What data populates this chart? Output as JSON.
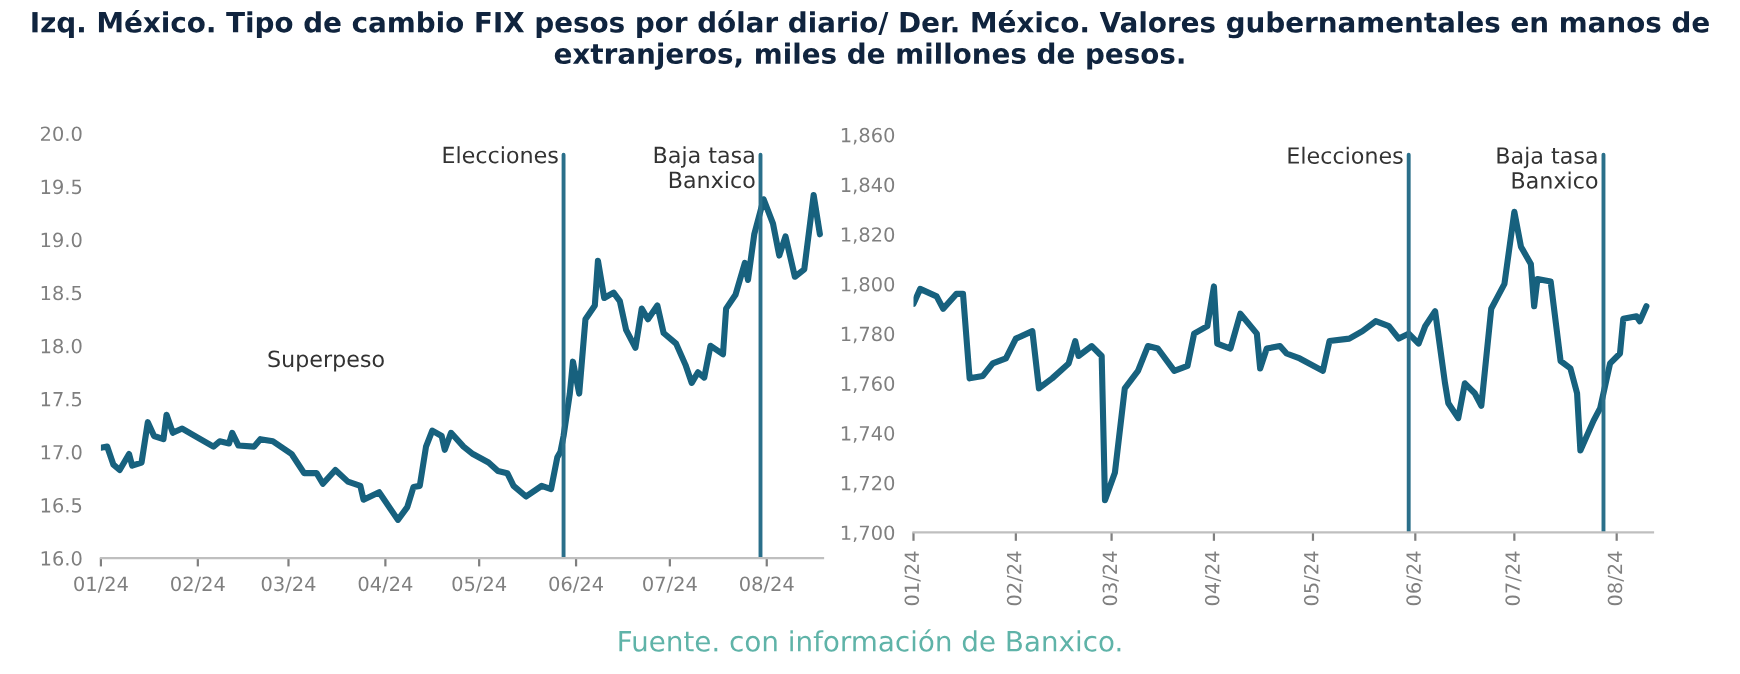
{
  "chart_data": [
    {
      "type": "line",
      "title": "Izq. México. Tipo de cambio FIX pesos por dólar diario/ Der. México. Valores gubernamentales en manos de extranjeros, miles de millones de pesos.",
      "x": [
        "2024-01-01",
        "2024-01-03",
        "2024-01-05",
        "2024-01-07",
        "2024-01-10",
        "2024-01-11",
        "2024-01-14",
        "2024-01-16",
        "2024-01-18",
        "2024-01-21",
        "2024-01-22",
        "2024-01-24",
        "2024-01-27",
        "2024-01-31",
        "2024-02-06",
        "2024-02-08",
        "2024-02-11",
        "2024-02-12",
        "2024-02-14",
        "2024-02-19",
        "2024-02-21",
        "2024-02-25",
        "2024-03-02",
        "2024-03-06",
        "2024-03-10",
        "2024-03-12",
        "2024-03-16",
        "2024-03-20",
        "2024-03-24",
        "2024-03-25",
        "2024-03-30",
        "2024-04-05",
        "2024-04-08",
        "2024-04-10",
        "2024-04-12",
        "2024-04-14",
        "2024-04-16",
        "2024-04-19",
        "2024-04-20",
        "2024-04-22",
        "2024-04-26",
        "2024-04-29",
        "2024-05-04",
        "2024-05-07",
        "2024-05-10",
        "2024-05-12",
        "2024-05-16",
        "2024-05-21",
        "2024-05-24",
        "2024-05-26",
        "2024-05-27",
        "2024-05-28",
        "2024-05-30",
        "2024-05-31",
        "2024-06-02",
        "2024-06-04",
        "2024-06-07",
        "2024-06-08",
        "2024-06-10",
        "2024-06-13",
        "2024-06-15",
        "2024-06-17",
        "2024-06-20",
        "2024-06-22",
        "2024-06-24",
        "2024-06-27",
        "2024-06-29",
        "2024-07-03",
        "2024-07-06",
        "2024-07-08",
        "2024-07-10",
        "2024-07-12",
        "2024-07-14",
        "2024-07-18",
        "2024-07-19",
        "2024-07-22",
        "2024-07-25",
        "2024-07-26",
        "2024-07-28",
        "2024-07-31",
        "2024-08-03",
        "2024-08-05",
        "2024-08-07",
        "2024-08-10",
        "2024-08-13",
        "2024-08-16",
        "2024-08-18"
      ],
      "series": [
        {
          "color": "#17617e",
          "values": [
            17.04,
            17.05,
            16.88,
            16.83,
            16.98,
            16.87,
            16.9,
            17.28,
            17.15,
            17.12,
            17.35,
            17.18,
            17.22,
            17.15,
            17.05,
            17.1,
            17.08,
            17.18,
            17.06,
            17.05,
            17.12,
            17.1,
            16.98,
            16.8,
            16.8,
            16.7,
            16.83,
            16.72,
            16.68,
            16.55,
            16.62,
            16.36,
            16.48,
            16.67,
            16.68,
            17.05,
            17.2,
            17.15,
            17.02,
            17.18,
            17.05,
            16.98,
            16.9,
            16.82,
            16.8,
            16.68,
            16.58,
            16.68,
            16.65,
            16.95,
            17.0,
            17.15,
            17.55,
            17.85,
            17.55,
            18.25,
            18.38,
            18.8,
            18.45,
            18.5,
            18.42,
            18.15,
            17.98,
            18.35,
            18.25,
            18.38,
            18.12,
            18.02,
            17.82,
            17.65,
            17.75,
            17.7,
            18.0,
            17.92,
            18.35,
            18.48,
            18.78,
            18.62,
            19.05,
            19.38,
            19.15,
            18.85,
            19.03,
            18.65,
            18.72,
            19.42,
            19.05
          ]
        }
      ],
      "xlim": [
        "2024-01-01",
        "2024-08-19"
      ],
      "xticks": [
        {
          "value": "2024-01-01",
          "label": "01/24"
        },
        {
          "value": "2024-02-01",
          "label": "02/24"
        },
        {
          "value": "2024-03-01",
          "label": "03/24"
        },
        {
          "value": "2024-04-01",
          "label": "04/24"
        },
        {
          "value": "2024-05-01",
          "label": "05/24"
        },
        {
          "value": "2024-06-01",
          "label": "06/24"
        },
        {
          "value": "2024-07-01",
          "label": "07/24"
        },
        {
          "value": "2024-08-01",
          "label": "08/24"
        }
      ],
      "ylim": [
        16.0,
        20.0
      ],
      "yticks": [
        {
          "value": 16.0,
          "label": "16.0"
        },
        {
          "value": 16.5,
          "label": "16.5"
        },
        {
          "value": 17.0,
          "label": "17.0"
        },
        {
          "value": 17.5,
          "label": "17.5"
        },
        {
          "value": 18.0,
          "label": "18.0"
        },
        {
          "value": 18.5,
          "label": "18.5"
        },
        {
          "value": 19.0,
          "label": "19.0"
        },
        {
          "value": 19.5,
          "label": "19.5"
        },
        {
          "value": 20.0,
          "label": "20.0"
        }
      ],
      "ref_lines": [
        {
          "axis": "x",
          "value": "2024-05-28",
          "label": "Elecciones",
          "color": "#2a6f8a"
        },
        {
          "axis": "x",
          "value": "2024-07-30",
          "label": "Baja tasa\nBanxico",
          "color": "#2a6f8a"
        }
      ],
      "annotations": [
        "Superpeso"
      ],
      "grid": false,
      "marker": "none",
      "line_style": "solid"
    },
    {
      "type": "line",
      "x": [
        "2024-01-01",
        "2024-01-03",
        "2024-01-08",
        "2024-01-10",
        "2024-01-14",
        "2024-01-16",
        "2024-01-18",
        "2024-01-22",
        "2024-01-25",
        "2024-01-29",
        "2024-02-01",
        "2024-02-06",
        "2024-02-08",
        "2024-02-12",
        "2024-02-17",
        "2024-02-19",
        "2024-02-20",
        "2024-02-24",
        "2024-02-27",
        "2024-02-28",
        "2024-03-02",
        "2024-03-05",
        "2024-03-09",
        "2024-03-12",
        "2024-03-15",
        "2024-03-20",
        "2024-03-24",
        "2024-03-26",
        "2024-03-30",
        "2024-04-01",
        "2024-04-02",
        "2024-04-06",
        "2024-04-09",
        "2024-04-14",
        "2024-04-15",
        "2024-04-17",
        "2024-04-21",
        "2024-04-23",
        "2024-04-27",
        "2024-05-04",
        "2024-05-06",
        "2024-05-12",
        "2024-05-16",
        "2024-05-20",
        "2024-05-24",
        "2024-05-27",
        "2024-05-30",
        "2024-06-02",
        "2024-06-04",
        "2024-06-07",
        "2024-06-10",
        "2024-06-11",
        "2024-06-14",
        "2024-06-16",
        "2024-06-19",
        "2024-06-21",
        "2024-06-24",
        "2024-06-28",
        "2024-07-01",
        "2024-07-03",
        "2024-07-06",
        "2024-07-07",
        "2024-07-08",
        "2024-07-12",
        "2024-07-15",
        "2024-07-18",
        "2024-07-20",
        "2024-07-21",
        "2024-07-25",
        "2024-07-27",
        "2024-07-30",
        "2024-08-02",
        "2024-08-03",
        "2024-08-07",
        "2024-08-08",
        "2024-08-10"
      ],
      "series": [
        {
          "color": "#17617e",
          "values": [
            1792,
            1798,
            1795,
            1790,
            1796,
            1796,
            1762,
            1763,
            1768,
            1770,
            1778,
            1781,
            1758,
            1762,
            1768,
            1777,
            1771,
            1775,
            1771,
            1713,
            1724,
            1758,
            1765,
            1775,
            1774,
            1765,
            1767,
            1780,
            1783,
            1799,
            1776,
            1774,
            1788,
            1780,
            1766,
            1774,
            1775,
            1772,
            1770,
            1765,
            1777,
            1778,
            1781,
            1785,
            1783,
            1778,
            1780,
            1776,
            1783,
            1789,
            1760,
            1752,
            1746,
            1760,
            1756,
            1751,
            1790,
            1800,
            1829,
            1815,
            1808,
            1791,
            1802,
            1801,
            1769,
            1766,
            1756,
            1733,
            1745,
            1750,
            1768,
            1772,
            1786,
            1787,
            1785,
            1791
          ]
        }
      ],
      "xlim": [
        "2024-01-01",
        "2024-08-12"
      ],
      "xticks": [
        {
          "value": "2024-01-01",
          "label": "01/24"
        },
        {
          "value": "2024-02-01",
          "label": "02/24"
        },
        {
          "value": "2024-03-01",
          "label": "03/24"
        },
        {
          "value": "2024-04-01",
          "label": "04/24"
        },
        {
          "value": "2024-05-01",
          "label": "05/24"
        },
        {
          "value": "2024-06-01",
          "label": "06/24"
        },
        {
          "value": "2024-07-01",
          "label": "07/24"
        },
        {
          "value": "2024-08-01",
          "label": "08/24"
        }
      ],
      "ylim": [
        1700,
        1860
      ],
      "yticks": [
        {
          "value": 1700,
          "label": "1,700"
        },
        {
          "value": 1720,
          "label": "1,720"
        },
        {
          "value": 1740,
          "label": "1,740"
        },
        {
          "value": 1760,
          "label": "1,760"
        },
        {
          "value": 1780,
          "label": "1,780"
        },
        {
          "value": 1800,
          "label": "1,800"
        },
        {
          "value": 1820,
          "label": "1,820"
        },
        {
          "value": 1840,
          "label": "1,840"
        },
        {
          "value": 1860,
          "label": "1,860"
        }
      ],
      "ref_lines": [
        {
          "axis": "x",
          "value": "2024-05-30",
          "label": "Elecciones",
          "color": "#2a6f8a"
        },
        {
          "axis": "x",
          "value": "2024-07-28",
          "label": "Baja tasa\nBanxico",
          "color": "#2a6f8a"
        }
      ],
      "annotations": [
        "Fuente. con información de Banxico."
      ],
      "grid": false,
      "marker": "none",
      "line_style": "solid"
    }
  ]
}
